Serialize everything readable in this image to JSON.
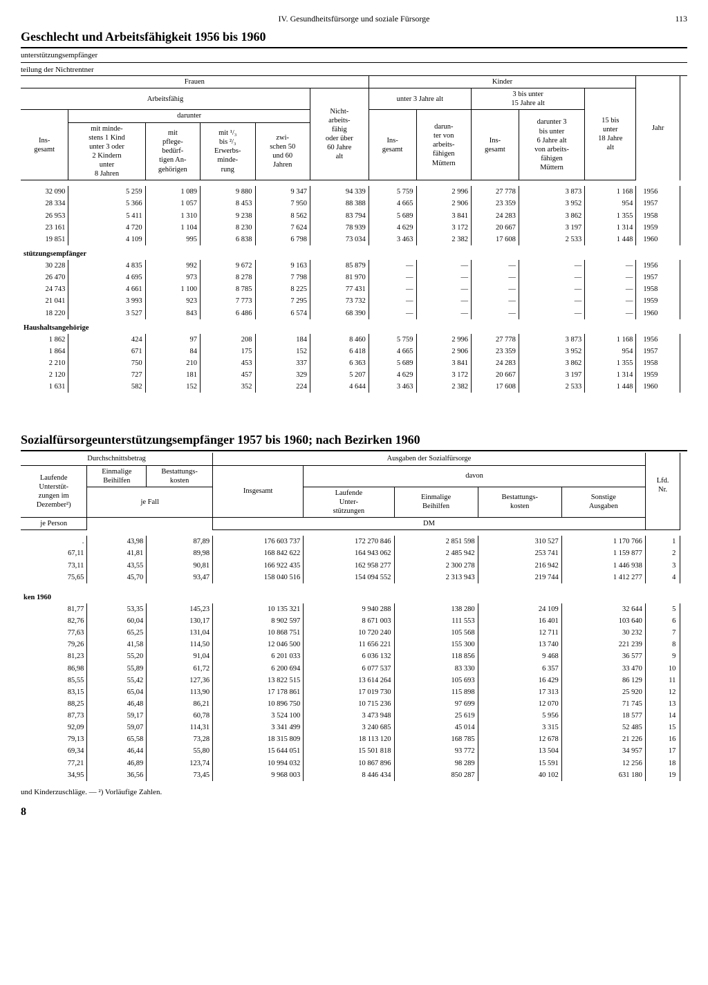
{
  "page": {
    "section": "IV. Gesundheitsfürsorge und soziale Fürsorge",
    "number": "113",
    "footnote": "und Kinderzuschläge. — ²) Vorläufige Zahlen.",
    "big8": "8"
  },
  "table1": {
    "title": "Geschlecht und Arbeitsfähigkeit 1956 bis 1960",
    "sub1": "unterstützungsempfänger",
    "sub2": "teilung der Nichtrentner",
    "h_frauen": "Frauen",
    "h_kinder": "Kinder",
    "h_jahr": "Jahr",
    "h_arbeitsfaehig": "Arbeitsfähig",
    "h_darunter": "darunter",
    "h_insgesamt": "Ins-\ngesamt",
    "h_c1": "mit minde-\nstens 1 Kind\nunter 3 oder\n2 Kindern\nunter\n8 Jahren",
    "h_c2": "mit\npflege-\nbedürf-\ntigen An-\ngehörigen",
    "h_c3": "mit ¹/₃\nbis ²/₃\nErwerbs-\nminde-\nrung",
    "h_c4": "zwi-\nschen 50\nund 60\nJahren",
    "h_nicht": "Nicht-\narbeits-\nfähig\noder über\n60 Jahre\nalt",
    "h_k_u3": "unter 3 Jahre alt",
    "h_k_3_15": "3 bis unter\n15 Jahre alt",
    "h_k_dar1": "darun-\nter von\narbeits-\nfähigen\nMüttern",
    "h_k_dar2": "darunter 3\nbis unter\n6 Jahre alt\nvon arbeits-\nfähigen\nMüttern",
    "h_k_15_18": "15 bis\nunter\n18 Jahre\nalt",
    "sections": [
      {
        "label": "",
        "rows": [
          [
            "32 090",
            "5 259",
            "1 089",
            "9 880",
            "9 347",
            "94 339",
            "5 759",
            "2 996",
            "27 778",
            "3 873",
            "1 168",
            "1956"
          ],
          [
            "28 334",
            "5 366",
            "1 057",
            "8 453",
            "7 950",
            "88 388",
            "4 665",
            "2 906",
            "23 359",
            "3 952",
            "954",
            "1957"
          ],
          [
            "26 953",
            "5 411",
            "1 310",
            "9 238",
            "8 562",
            "83 794",
            "5 689",
            "3 841",
            "24 283",
            "3 862",
            "1 355",
            "1958"
          ],
          [
            "23 161",
            "4 720",
            "1 104",
            "8 230",
            "7 624",
            "78 939",
            "4 629",
            "3 172",
            "20 667",
            "3 197",
            "1 314",
            "1959"
          ],
          [
            "19 851",
            "4 109",
            "995",
            "6 838",
            "6 798",
            "73 034",
            "3 463",
            "2 382",
            "17 608",
            "2 533",
            "1 448",
            "1960"
          ]
        ]
      },
      {
        "label": "stützungsempfänger",
        "rows": [
          [
            "30 228",
            "4 835",
            "992",
            "9 672",
            "9 163",
            "85 879",
            "—",
            "—",
            "—",
            "—",
            "—",
            "1956"
          ],
          [
            "26 470",
            "4 695",
            "973",
            "8 278",
            "7 798",
            "81 970",
            "—",
            "—",
            "—",
            "—",
            "—",
            "1957"
          ],
          [
            "24 743",
            "4 661",
            "1 100",
            "8 785",
            "8 225",
            "77 431",
            "—",
            "—",
            "—",
            "—",
            "—",
            "1958"
          ],
          [
            "21 041",
            "3 993",
            "923",
            "7 773",
            "7 295",
            "73 732",
            "—",
            "—",
            "—",
            "—",
            "—",
            "1959"
          ],
          [
            "18 220",
            "3 527",
            "843",
            "6 486",
            "6 574",
            "68 390",
            "—",
            "—",
            "—",
            "—",
            "—",
            "1960"
          ]
        ]
      },
      {
        "label": "Haushaltsangehörige",
        "rows": [
          [
            "1 862",
            "424",
            "97",
            "208",
            "184",
            "8 460",
            "5 759",
            "2 996",
            "27 778",
            "3 873",
            "1 168",
            "1956"
          ],
          [
            "1 864",
            "671",
            "84",
            "175",
            "152",
            "6 418",
            "4 665",
            "2 906",
            "23 359",
            "3 952",
            "954",
            "1957"
          ],
          [
            "2 210",
            "750",
            "210",
            "453",
            "337",
            "6 363",
            "5 689",
            "3 841",
            "24 283",
            "3 862",
            "1 355",
            "1958"
          ],
          [
            "2 120",
            "727",
            "181",
            "457",
            "329",
            "5 207",
            "4 629",
            "3 172",
            "20 667",
            "3 197",
            "1 314",
            "1959"
          ],
          [
            "1 631",
            "582",
            "152",
            "352",
            "224",
            "4 644",
            "3 463",
            "2 382",
            "17 608",
            "2 533",
            "1 448",
            "1960"
          ]
        ]
      }
    ]
  },
  "table2": {
    "title": "Sozialfürsorgeunterstützungsempfänger 1957 bis 1960; nach Bezirken 1960",
    "h_durch": "Durchschnittsbetrag",
    "h_ausgaben": "Ausgaben der Sozialfürsorge",
    "h_lfd": "Lfd.\nNr.",
    "h_c1": "Laufende\nUnterstüt-\nzungen im\nDezember²)",
    "h_c2": "Einmalige\nBeihilfen",
    "h_c3": "Bestattungs-\nkosten",
    "h_jeP": "je Person",
    "h_jeF": "je Fall",
    "h_insg": "Insgesamt",
    "h_davon": "davon",
    "h_d1": "Laufende\nUnter-\nstützungen",
    "h_d2": "Einmalige\nBeihilfen",
    "h_d3": "Bestattungs-\nkosten",
    "h_d4": "Sonstige\nAusgaben",
    "h_dm": "DM",
    "sections": [
      {
        "label": "",
        "rows": [
          [
            ".",
            "43,98",
            "87,89",
            "176 603 737",
            "172 270 846",
            "2 851 598",
            "310 527",
            "1 170 766",
            "1"
          ],
          [
            "67,11",
            "41,81",
            "89,98",
            "168 842 622",
            "164 943 062",
            "2 485 942",
            "253 741",
            "1 159 877",
            "2"
          ],
          [
            "73,11",
            "43,55",
            "90,81",
            "166 922 435",
            "162 958 277",
            "2 300 278",
            "216 942",
            "1 446 938",
            "3"
          ],
          [
            "75,65",
            "45,70",
            "93,47",
            "158 040 516",
            "154 094 552",
            "2 313 943",
            "219 744",
            "1 412 277",
            "4"
          ]
        ]
      },
      {
        "label": "ken 1960",
        "rows": [
          [
            "81,77",
            "53,35",
            "145,23",
            "10 135 321",
            "9 940 288",
            "138 280",
            "24 109",
            "32 644",
            "5"
          ],
          [
            "82,76",
            "60,04",
            "130,17",
            "8 902 597",
            "8 671 003",
            "111 553",
            "16 401",
            "103 640",
            "6"
          ],
          [
            "77,63",
            "65,25",
            "131,04",
            "10 868 751",
            "10 720 240",
            "105 568",
            "12 711",
            "30 232",
            "7"
          ],
          [
            "79,26",
            "41,58",
            "114,50",
            "12 046 500",
            "11 656 221",
            "155 300",
            "13 740",
            "221 239",
            "8"
          ],
          [
            "81,23",
            "55,20",
            "91,04",
            "6 201 033",
            "6 036 132",
            "118 856",
            "9 468",
            "36 577",
            "9"
          ],
          [
            "86,98",
            "55,89",
            "61,72",
            "6 200 694",
            "6 077 537",
            "83 330",
            "6 357",
            "33 470",
            "10"
          ],
          [
            "85,55",
            "55,42",
            "127,36",
            "13 822 515",
            "13 614 264",
            "105 693",
            "16 429",
            "86 129",
            "11"
          ],
          [
            "83,15",
            "65,04",
            "113,90",
            "17 178 861",
            "17 019 730",
            "115 898",
            "17 313",
            "25 920",
            "12"
          ],
          [
            "88,25",
            "46,48",
            "86,21",
            "10 896 750",
            "10 715 236",
            "97 699",
            "12 070",
            "71 745",
            "13"
          ],
          [
            "87,73",
            "59,17",
            "60,78",
            "3 524 100",
            "3 473 948",
            "25 619",
            "5 956",
            "18 577",
            "14"
          ],
          [
            "92,09",
            "59,07",
            "114,31",
            "3 341 499",
            "3 240 685",
            "45 014",
            "3 315",
            "52 485",
            "15"
          ],
          [
            "79,13",
            "65,58",
            "73,28",
            "18 315 809",
            "18 113 120",
            "168 785",
            "12 678",
            "21 226",
            "16"
          ],
          [
            "69,34",
            "46,44",
            "55,80",
            "15 644 051",
            "15 501 818",
            "93 772",
            "13 504",
            "34 957",
            "17"
          ],
          [
            "77,21",
            "46,89",
            "123,74",
            "10 994 032",
            "10 867 896",
            "98 289",
            "15 591",
            "12 256",
            "18"
          ],
          [
            "34,95",
            "36,56",
            "73,45",
            "9 968 003",
            "8 446 434",
            "850 287",
            "40 102",
            "631 180",
            "19"
          ]
        ]
      }
    ]
  }
}
